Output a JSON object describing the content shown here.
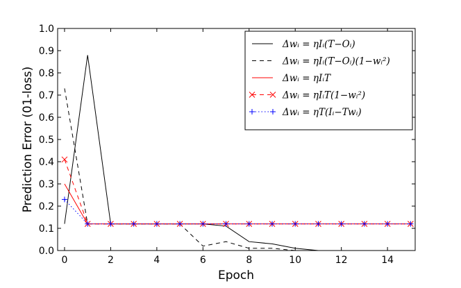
{
  "chart_data": {
    "type": "line",
    "title": "",
    "xlabel": "Epoch",
    "ylabel": "Prediction Error (01-loss)",
    "xlim": [
      -0.3,
      15.2
    ],
    "ylim": [
      0.0,
      1.0
    ],
    "xticks": [
      0,
      2,
      4,
      6,
      8,
      10,
      12,
      14
    ],
    "yticks": [
      0.0,
      0.1,
      0.2,
      0.3,
      0.4,
      0.5,
      0.6,
      0.7,
      0.8,
      0.9,
      1.0
    ],
    "grid": false,
    "legend_position": "top-right",
    "series": [
      {
        "name": "Δwᵢ = ηIᵢ(T−Oᵢ)",
        "style": "solid",
        "color": "#000000",
        "marker": "none",
        "x": [
          0,
          1,
          2,
          3,
          4,
          5,
          6,
          7,
          8,
          9,
          10,
          11,
          12,
          13,
          14,
          15
        ],
        "y": [
          0.12,
          0.88,
          0.12,
          0.12,
          0.12,
          0.12,
          0.12,
          0.11,
          0.04,
          0.03,
          0.01,
          0.0,
          0.0,
          0.0,
          0.0,
          0.0
        ]
      },
      {
        "name": "Δwᵢ = ηIᵢ(T−Oᵢ)(1−wᵢ²)",
        "style": "dashed",
        "color": "#000000",
        "marker": "none",
        "x": [
          0,
          1,
          2,
          3,
          4,
          5,
          6,
          7,
          8,
          9,
          10,
          11,
          12,
          13,
          14,
          15
        ],
        "y": [
          0.73,
          0.12,
          0.12,
          0.12,
          0.12,
          0.12,
          0.02,
          0.04,
          0.01,
          0.01,
          0.0,
          0.0,
          0.0,
          0.0,
          0.0,
          0.0
        ]
      },
      {
        "name": "Δwᵢ = ηIᵢT",
        "style": "solid",
        "color": "#ff0000",
        "marker": "none",
        "x": [
          0,
          1,
          2,
          3,
          4,
          5,
          6,
          7,
          8,
          9,
          10,
          11,
          12,
          13,
          14,
          15
        ],
        "y": [
          0.3,
          0.12,
          0.12,
          0.12,
          0.12,
          0.12,
          0.12,
          0.12,
          0.12,
          0.12,
          0.12,
          0.12,
          0.12,
          0.12,
          0.12,
          0.12
        ]
      },
      {
        "name": "Δwᵢ = ηIᵢT(1−wᵢ²)",
        "style": "dashed",
        "color": "#ff0000",
        "marker": "x",
        "x": [
          0,
          1,
          2,
          3,
          4,
          5,
          6,
          7,
          8,
          9,
          10,
          11,
          12,
          13,
          14,
          15
        ],
        "y": [
          0.41,
          0.12,
          0.12,
          0.12,
          0.12,
          0.12,
          0.12,
          0.12,
          0.12,
          0.12,
          0.12,
          0.12,
          0.12,
          0.12,
          0.12,
          0.12
        ]
      },
      {
        "name": "Δwᵢ = ηT(Iᵢ−Twᵢ)",
        "style": "dotted",
        "color": "#0000ff",
        "marker": "+",
        "x": [
          0,
          1,
          2,
          3,
          4,
          5,
          6,
          7,
          8,
          9,
          10,
          11,
          12,
          13,
          14,
          15
        ],
        "y": [
          0.23,
          0.12,
          0.12,
          0.12,
          0.12,
          0.12,
          0.12,
          0.12,
          0.12,
          0.12,
          0.12,
          0.12,
          0.12,
          0.12,
          0.12,
          0.12
        ]
      }
    ]
  }
}
